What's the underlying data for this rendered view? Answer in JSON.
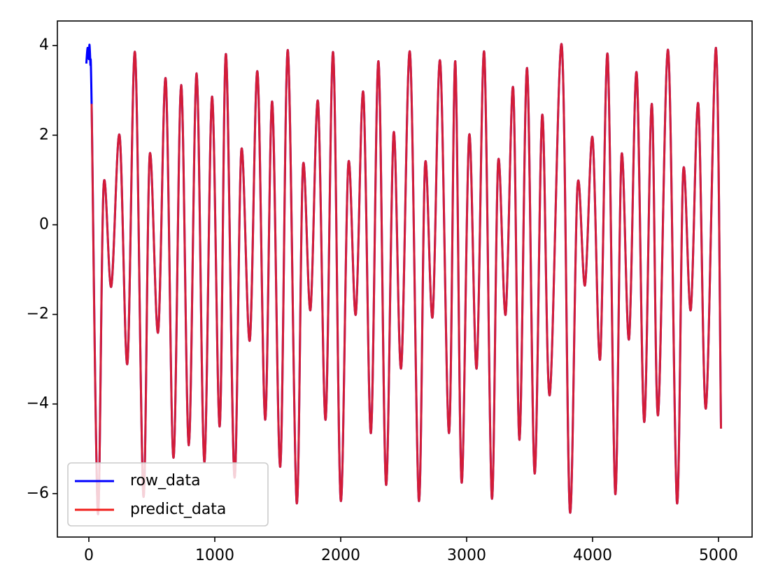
{
  "chart_data": {
    "type": "line",
    "xlim": [
      -250,
      5267
    ],
    "ylim": [
      -6.97,
      4.55
    ],
    "xticks": [
      0,
      1000,
      2000,
      3000,
      4000,
      5000
    ],
    "yticks": [
      {
        "value": -6,
        "label": "−6"
      },
      {
        "value": -4,
        "label": "−4"
      },
      {
        "value": -2,
        "label": "−2"
      },
      0,
      2,
      4
    ],
    "grid": false,
    "legend": "lower left",
    "series": [
      {
        "name": "row_data",
        "color": "#0000ff",
        "x": [
          -20,
          -10,
          0,
          5,
          12,
          22,
          72,
          117,
          178,
          244,
          306,
          367,
          433,
          483,
          550,
          611,
          672,
          733,
          794,
          856,
          917,
          978,
          1039,
          1089,
          1156,
          1211,
          1278,
          1339,
          1400,
          1456,
          1520,
          1580,
          1650,
          1700,
          1760,
          1820,
          1880,
          1940,
          2000,
          2060,
          2120,
          2180,
          2240,
          2300,
          2360,
          2420,
          2480,
          2550,
          2620,
          2670,
          2730,
          2790,
          2860,
          2910,
          2960,
          3020,
          3080,
          3140,
          3200,
          3250,
          3310,
          3370,
          3420,
          3480,
          3540,
          3600,
          3660,
          3755,
          3820,
          3880,
          3940,
          4000,
          4060,
          4120,
          4180,
          4230,
          4290,
          4350,
          4410,
          4470,
          4520,
          4600,
          4670,
          4720,
          4780,
          4840,
          4900,
          4980,
          5020
        ],
        "values": [
          3.6,
          3.95,
          3.7,
          4.02,
          3.6,
          2.7,
          -6.45,
          0.86,
          -1.38,
          2.0,
          -3.1,
          3.84,
          -6.06,
          1.55,
          -2.4,
          3.25,
          -5.2,
          3.12,
          -4.92,
          3.38,
          -5.3,
          2.86,
          -4.5,
          3.81,
          -5.63,
          1.67,
          -2.58,
          3.42,
          -4.35,
          2.75,
          -5.4,
          3.9,
          -6.2,
          1.3,
          -1.9,
          2.75,
          -4.35,
          3.85,
          -6.15,
          1.35,
          -2.0,
          2.95,
          -4.65,
          3.65,
          -5.8,
          2.05,
          -3.2,
          3.85,
          -6.15,
          1.35,
          -2.05,
          3.65,
          -4.65,
          3.65,
          -5.75,
          2.0,
          -3.2,
          3.85,
          -6.1,
          1.4,
          -2.0,
          3.05,
          -4.8,
          3.5,
          -5.55,
          2.45,
          -3.8,
          4.02,
          -6.4,
          0.85,
          -1.35,
          1.95,
          -3.0,
          3.8,
          -6.0,
          1.55,
          -2.55,
          3.4,
          -4.4,
          2.7,
          -4.25,
          3.9,
          -6.2,
          1.2,
          -1.9,
          2.7,
          -4.1,
          3.95,
          -4.55
        ]
      },
      {
        "name": "predict_data",
        "color": "#f0201c",
        "x": [
          22,
          72,
          117,
          178,
          244,
          306,
          367,
          433,
          483,
          550,
          611,
          672,
          733,
          794,
          856,
          917,
          978,
          1039,
          1089,
          1156,
          1211,
          1278,
          1339,
          1400,
          1456,
          1520,
          1580,
          1650,
          1700,
          1760,
          1820,
          1880,
          1940,
          2000,
          2060,
          2120,
          2180,
          2240,
          2300,
          2360,
          2420,
          2480,
          2550,
          2620,
          2670,
          2730,
          2790,
          2860,
          2910,
          2960,
          3020,
          3080,
          3140,
          3200,
          3250,
          3310,
          3370,
          3420,
          3480,
          3540,
          3600,
          3660,
          3755,
          3820,
          3880,
          3940,
          4000,
          4060,
          4120,
          4180,
          4230,
          4290,
          4350,
          4410,
          4470,
          4520,
          4600,
          4670,
          4720,
          4780,
          4840,
          4900,
          4980,
          5020
        ],
        "values": [
          2.7,
          -6.45,
          0.86,
          -1.38,
          2.0,
          -3.1,
          3.84,
          -6.06,
          1.55,
          -2.4,
          3.25,
          -5.2,
          3.12,
          -4.92,
          3.38,
          -5.3,
          2.86,
          -4.5,
          3.81,
          -5.63,
          1.67,
          -2.58,
          3.42,
          -4.35,
          2.75,
          -5.4,
          3.9,
          -6.2,
          1.3,
          -1.9,
          2.75,
          -4.35,
          3.85,
          -6.15,
          1.35,
          -2.0,
          2.95,
          -4.65,
          3.65,
          -5.8,
          2.05,
          -3.2,
          3.85,
          -6.15,
          1.35,
          -2.05,
          3.65,
          -4.65,
          3.65,
          -5.75,
          2.0,
          -3.2,
          3.85,
          -6.1,
          1.4,
          -2.0,
          3.05,
          -4.8,
          3.5,
          -5.55,
          2.45,
          -3.8,
          4.02,
          -6.4,
          0.85,
          -1.35,
          1.95,
          -3.0,
          3.8,
          -6.0,
          1.55,
          -2.55,
          3.4,
          -4.4,
          2.7,
          -4.25,
          3.9,
          -6.2,
          1.2,
          -1.9,
          2.7,
          -4.1,
          3.95,
          -4.55
        ]
      }
    ]
  }
}
